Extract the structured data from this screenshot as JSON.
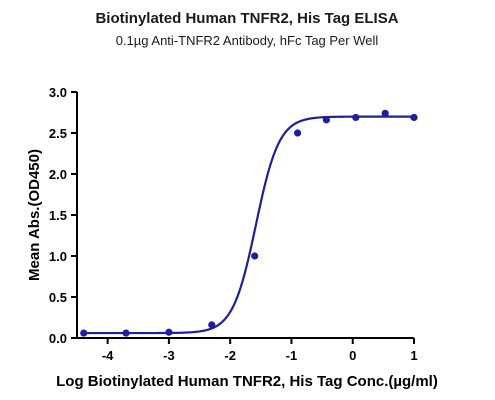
{
  "chart_data": {
    "type": "scatter",
    "title": "Biotinylated Human TNFR2, His Tag ELISA",
    "subtitle": "0.1µg Anti-TNFR2 Antibody, hFc Tag Per Well",
    "xlabel": "Log Biotinylated Human TNFR2, His Tag Conc.(µg/ml)",
    "ylabel": "Mean Abs.(OD450)",
    "xlim": [
      -4.5,
      1
    ],
    "ylim": [
      0,
      3
    ],
    "x_ticks": [
      -4,
      -3,
      -2,
      -1,
      0,
      1
    ],
    "x_tick_labels": [
      "-4",
      "-3",
      "-2",
      "-1",
      "0",
      "1"
    ],
    "y_ticks": [
      0,
      0.5,
      1,
      1.5,
      2,
      2.5,
      3
    ],
    "y_tick_labels": [
      "0.0",
      "0.5",
      "1.0",
      "1.5",
      "2.0",
      "2.5",
      "3.0"
    ],
    "grid": false,
    "legend": "none",
    "color": "#1f1f9e",
    "series": [
      {
        "x": [
          -4.39,
          -3.7,
          -3.0,
          -2.3,
          -1.6,
          -0.9,
          -0.43,
          0.05,
          0.53,
          1.0
        ],
        "y": [
          0.06,
          0.06,
          0.07,
          0.16,
          1.0,
          2.5,
          2.66,
          2.69,
          2.74,
          2.69
        ]
      }
    ],
    "fit_curve": {
      "model": "4PL",
      "bottom": 0.06,
      "top": 2.7,
      "log_ec50": -1.58,
      "hill": 2.3
    }
  }
}
